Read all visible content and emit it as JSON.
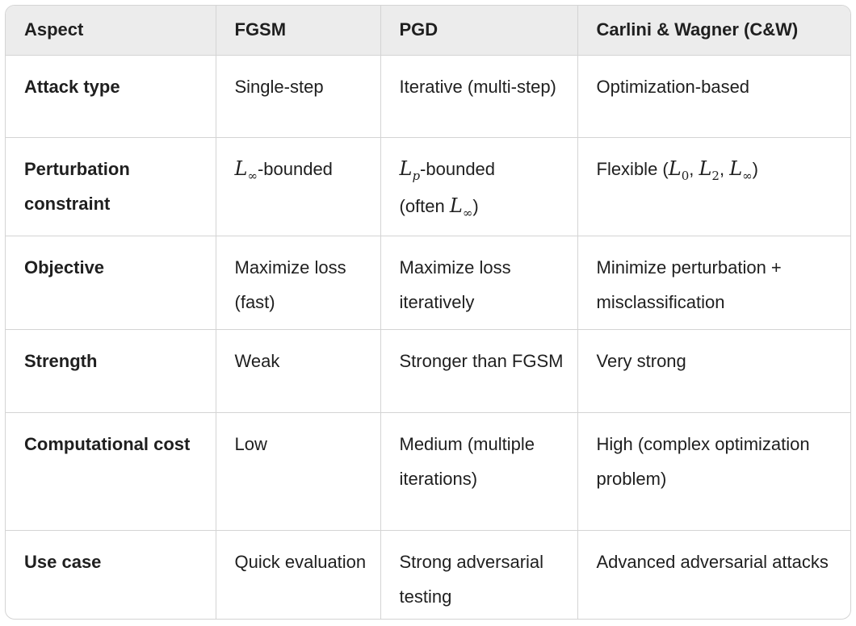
{
  "headers": [
    "Aspect",
    "FGSM",
    "PGD",
    "Carlini & Wagner (C&W)"
  ],
  "rows": [
    {
      "aspect": "Attack type",
      "fgsm": "Single-step",
      "pgd": "Iterative (multi-step)",
      "cw": "Optimization-based"
    },
    {
      "aspect": "Perturbation constraint",
      "fgsm": "L∞-bounded",
      "pgd": "Lp-bounded (often L∞)",
      "cw": "Flexible (L0, L2, L∞)"
    },
    {
      "aspect": "Objective",
      "fgsm": "Maximize loss (fast)",
      "pgd": "Maximize loss iteratively",
      "cw": "Minimize perturbation + misclassification"
    },
    {
      "aspect": "Strength",
      "fgsm": "Weak",
      "pgd": "Stronger than FGSM",
      "cw": "Very strong"
    },
    {
      "aspect": "Computational cost",
      "fgsm": "Low",
      "pgd": "Medium (multiple iterations)",
      "cw": "High (complex optimization problem)"
    },
    {
      "aspect": "Use case",
      "fgsm": "Quick evaluation",
      "pgd": "Strong adversarial testing",
      "cw": "Advanced adversarial attacks"
    }
  ],
  "math": {
    "L": "L",
    "inf": "∞",
    "p": "p",
    "zero": "0",
    "two": "2",
    "bounded": "-bounded",
    "often_open": "(often ",
    "close": ")",
    "flexible_open": "Flexible (",
    "comma": ", "
  }
}
